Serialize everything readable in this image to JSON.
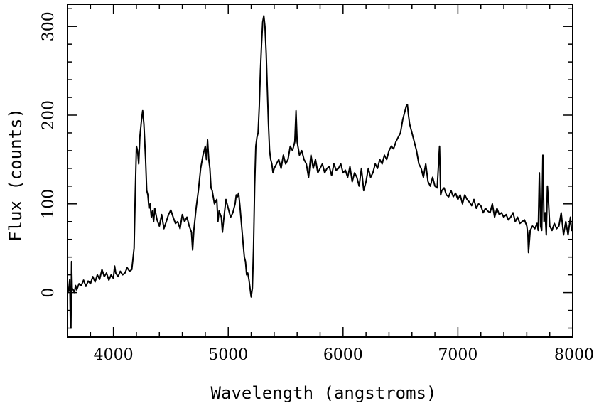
{
  "chart_data": {
    "type": "line",
    "title": "",
    "xlabel": "Wavelength (angstroms)",
    "ylabel": "Flux (counts)",
    "xlim": [
      3600,
      8000
    ],
    "ylim": [
      -50,
      325
    ],
    "xticks": [
      4000,
      5000,
      6000,
      7000,
      8000
    ],
    "yticks": [
      0,
      100,
      200,
      300
    ],
    "x_minor_step": 200,
    "y_minor_step": 20,
    "grid": false,
    "line_color": "#000000",
    "series": [
      {
        "points": [
          [
            3600,
            0
          ],
          [
            3610,
            2
          ],
          [
            3620,
            15
          ],
          [
            3625,
            -30
          ],
          [
            3630,
            -40
          ],
          [
            3635,
            35
          ],
          [
            3640,
            5
          ],
          [
            3650,
            3
          ],
          [
            3660,
            0
          ],
          [
            3670,
            8
          ],
          [
            3680,
            3
          ],
          [
            3700,
            10
          ],
          [
            3720,
            8
          ],
          [
            3740,
            14
          ],
          [
            3760,
            7
          ],
          [
            3780,
            13
          ],
          [
            3800,
            10
          ],
          [
            3820,
            18
          ],
          [
            3840,
            12
          ],
          [
            3860,
            20
          ],
          [
            3880,
            15
          ],
          [
            3900,
            26
          ],
          [
            3920,
            18
          ],
          [
            3940,
            22
          ],
          [
            3960,
            14
          ],
          [
            3980,
            20
          ],
          [
            4000,
            16
          ],
          [
            4010,
            30
          ],
          [
            4020,
            22
          ],
          [
            4040,
            18
          ],
          [
            4060,
            24
          ],
          [
            4080,
            20
          ],
          [
            4100,
            22
          ],
          [
            4120,
            28
          ],
          [
            4140,
            24
          ],
          [
            4160,
            26
          ],
          [
            4180,
            50
          ],
          [
            4190,
            110
          ],
          [
            4200,
            165
          ],
          [
            4210,
            160
          ],
          [
            4220,
            145
          ],
          [
            4230,
            175
          ],
          [
            4245,
            195
          ],
          [
            4255,
            205
          ],
          [
            4265,
            190
          ],
          [
            4280,
            150
          ],
          [
            4290,
            115
          ],
          [
            4300,
            110
          ],
          [
            4310,
            95
          ],
          [
            4320,
            100
          ],
          [
            4330,
            85
          ],
          [
            4340,
            92
          ],
          [
            4350,
            80
          ],
          [
            4360,
            95
          ],
          [
            4380,
            82
          ],
          [
            4400,
            75
          ],
          [
            4420,
            88
          ],
          [
            4440,
            72
          ],
          [
            4460,
            80
          ],
          [
            4480,
            88
          ],
          [
            4500,
            93
          ],
          [
            4520,
            85
          ],
          [
            4540,
            78
          ],
          [
            4560,
            80
          ],
          [
            4580,
            72
          ],
          [
            4600,
            88
          ],
          [
            4620,
            80
          ],
          [
            4640,
            85
          ],
          [
            4660,
            75
          ],
          [
            4680,
            68
          ],
          [
            4690,
            48
          ],
          [
            4700,
            70
          ],
          [
            4720,
            95
          ],
          [
            4740,
            115
          ],
          [
            4760,
            140
          ],
          [
            4780,
            155
          ],
          [
            4800,
            165
          ],
          [
            4810,
            150
          ],
          [
            4820,
            172
          ],
          [
            4830,
            150
          ],
          [
            4840,
            140
          ],
          [
            4850,
            118
          ],
          [
            4860,
            115
          ],
          [
            4880,
            100
          ],
          [
            4900,
            105
          ],
          [
            4910,
            80
          ],
          [
            4920,
            92
          ],
          [
            4940,
            85
          ],
          [
            4950,
            68
          ],
          [
            4960,
            82
          ],
          [
            4980,
            105
          ],
          [
            5000,
            95
          ],
          [
            5020,
            85
          ],
          [
            5040,
            90
          ],
          [
            5060,
            100
          ],
          [
            5070,
            110
          ],
          [
            5080,
            108
          ],
          [
            5090,
            112
          ],
          [
            5100,
            100
          ],
          [
            5110,
            85
          ],
          [
            5120,
            70
          ],
          [
            5130,
            55
          ],
          [
            5140,
            40
          ],
          [
            5150,
            35
          ],
          [
            5160,
            20
          ],
          [
            5170,
            22
          ],
          [
            5180,
            15
          ],
          [
            5190,
            5
          ],
          [
            5200,
            -5
          ],
          [
            5210,
            5
          ],
          [
            5220,
            50
          ],
          [
            5230,
            120
          ],
          [
            5240,
            165
          ],
          [
            5250,
            175
          ],
          [
            5260,
            180
          ],
          [
            5270,
            210
          ],
          [
            5280,
            250
          ],
          [
            5290,
            280
          ],
          [
            5300,
            305
          ],
          [
            5310,
            312
          ],
          [
            5320,
            300
          ],
          [
            5330,
            270
          ],
          [
            5340,
            230
          ],
          [
            5350,
            190
          ],
          [
            5360,
            160
          ],
          [
            5370,
            150
          ],
          [
            5380,
            145
          ],
          [
            5390,
            135
          ],
          [
            5400,
            140
          ],
          [
            5420,
            145
          ],
          [
            5440,
            150
          ],
          [
            5460,
            140
          ],
          [
            5480,
            155
          ],
          [
            5500,
            145
          ],
          [
            5520,
            150
          ],
          [
            5540,
            165
          ],
          [
            5560,
            160
          ],
          [
            5580,
            170
          ],
          [
            5590,
            205
          ],
          [
            5600,
            170
          ],
          [
            5620,
            155
          ],
          [
            5640,
            160
          ],
          [
            5660,
            150
          ],
          [
            5680,
            145
          ],
          [
            5700,
            130
          ],
          [
            5720,
            155
          ],
          [
            5740,
            140
          ],
          [
            5760,
            150
          ],
          [
            5780,
            135
          ],
          [
            5800,
            140
          ],
          [
            5820,
            145
          ],
          [
            5840,
            135
          ],
          [
            5860,
            140
          ],
          [
            5880,
            142
          ],
          [
            5900,
            132
          ],
          [
            5920,
            145
          ],
          [
            5940,
            138
          ],
          [
            5960,
            140
          ],
          [
            5980,
            145
          ],
          [
            6000,
            135
          ],
          [
            6020,
            138
          ],
          [
            6040,
            130
          ],
          [
            6060,
            142
          ],
          [
            6080,
            125
          ],
          [
            6100,
            135
          ],
          [
            6120,
            130
          ],
          [
            6140,
            120
          ],
          [
            6160,
            140
          ],
          [
            6180,
            115
          ],
          [
            6200,
            125
          ],
          [
            6220,
            140
          ],
          [
            6240,
            130
          ],
          [
            6260,
            135
          ],
          [
            6280,
            145
          ],
          [
            6300,
            140
          ],
          [
            6320,
            150
          ],
          [
            6340,
            145
          ],
          [
            6360,
            155
          ],
          [
            6380,
            150
          ],
          [
            6400,
            160
          ],
          [
            6420,
            165
          ],
          [
            6440,
            162
          ],
          [
            6460,
            170
          ],
          [
            6480,
            175
          ],
          [
            6500,
            180
          ],
          [
            6520,
            195
          ],
          [
            6540,
            205
          ],
          [
            6550,
            210
          ],
          [
            6560,
            212
          ],
          [
            6570,
            200
          ],
          [
            6580,
            190
          ],
          [
            6600,
            180
          ],
          [
            6620,
            170
          ],
          [
            6640,
            160
          ],
          [
            6660,
            145
          ],
          [
            6680,
            140
          ],
          [
            6700,
            130
          ],
          [
            6720,
            145
          ],
          [
            6740,
            125
          ],
          [
            6760,
            120
          ],
          [
            6780,
            130
          ],
          [
            6800,
            120
          ],
          [
            6820,
            118
          ],
          [
            6840,
            165
          ],
          [
            6850,
            110
          ],
          [
            6860,
            115
          ],
          [
            6880,
            118
          ],
          [
            6900,
            110
          ],
          [
            6920,
            108
          ],
          [
            6940,
            115
          ],
          [
            6960,
            108
          ],
          [
            6980,
            112
          ],
          [
            7000,
            105
          ],
          [
            7020,
            110
          ],
          [
            7040,
            100
          ],
          [
            7060,
            110
          ],
          [
            7080,
            105
          ],
          [
            7100,
            102
          ],
          [
            7120,
            98
          ],
          [
            7140,
            105
          ],
          [
            7160,
            95
          ],
          [
            7180,
            100
          ],
          [
            7200,
            98
          ],
          [
            7220,
            90
          ],
          [
            7240,
            95
          ],
          [
            7260,
            92
          ],
          [
            7280,
            90
          ],
          [
            7300,
            100
          ],
          [
            7320,
            85
          ],
          [
            7340,
            95
          ],
          [
            7360,
            88
          ],
          [
            7380,
            90
          ],
          [
            7400,
            85
          ],
          [
            7420,
            88
          ],
          [
            7440,
            82
          ],
          [
            7460,
            85
          ],
          [
            7480,
            90
          ],
          [
            7500,
            80
          ],
          [
            7520,
            85
          ],
          [
            7540,
            78
          ],
          [
            7560,
            80
          ],
          [
            7580,
            82
          ],
          [
            7600,
            75
          ],
          [
            7610,
            65
          ],
          [
            7615,
            45
          ],
          [
            7630,
            70
          ],
          [
            7650,
            75
          ],
          [
            7670,
            72
          ],
          [
            7690,
            78
          ],
          [
            7700,
            70
          ],
          [
            7710,
            135
          ],
          [
            7720,
            75
          ],
          [
            7730,
            70
          ],
          [
            7740,
            155
          ],
          [
            7750,
            80
          ],
          [
            7760,
            90
          ],
          [
            7770,
            65
          ],
          [
            7780,
            120
          ],
          [
            7790,
            100
          ],
          [
            7800,
            75
          ],
          [
            7820,
            70
          ],
          [
            7840,
            78
          ],
          [
            7860,
            72
          ],
          [
            7880,
            75
          ],
          [
            7900,
            90
          ],
          [
            7920,
            65
          ],
          [
            7940,
            80
          ],
          [
            7960,
            65
          ],
          [
            7980,
            85
          ],
          [
            7990,
            70
          ],
          [
            8000,
            72
          ]
        ]
      }
    ]
  }
}
